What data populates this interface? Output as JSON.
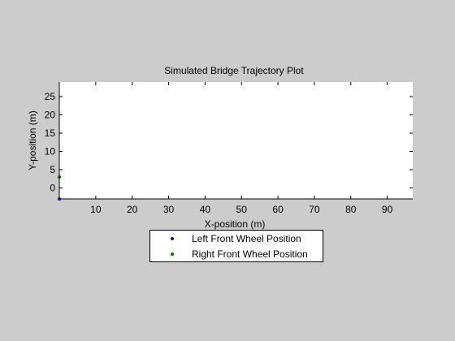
{
  "window": {
    "background": "#cccccc"
  },
  "chart_data": {
    "type": "scatter",
    "title": "Simulated Bridge Trajectory Plot",
    "xlabel": "X-position (m)",
    "ylabel": "Y-position (m)",
    "xlim": [
      0,
      97
    ],
    "ylim": [
      -3,
      29
    ],
    "xticks": [
      10,
      20,
      30,
      40,
      50,
      60,
      70,
      80,
      90
    ],
    "yticks": [
      0,
      5,
      10,
      15,
      20,
      25
    ],
    "grid": false,
    "legend_position": "below plot",
    "series": [
      {
        "name": "Left Front Wheel Position",
        "color": "#0000ff",
        "marker": "dot",
        "points": [
          [
            0,
            -3
          ]
        ]
      },
      {
        "name": "Right Front Wheel Position",
        "color": "#008000",
        "marker": "dot",
        "points": [
          [
            0,
            3
          ]
        ]
      }
    ]
  }
}
